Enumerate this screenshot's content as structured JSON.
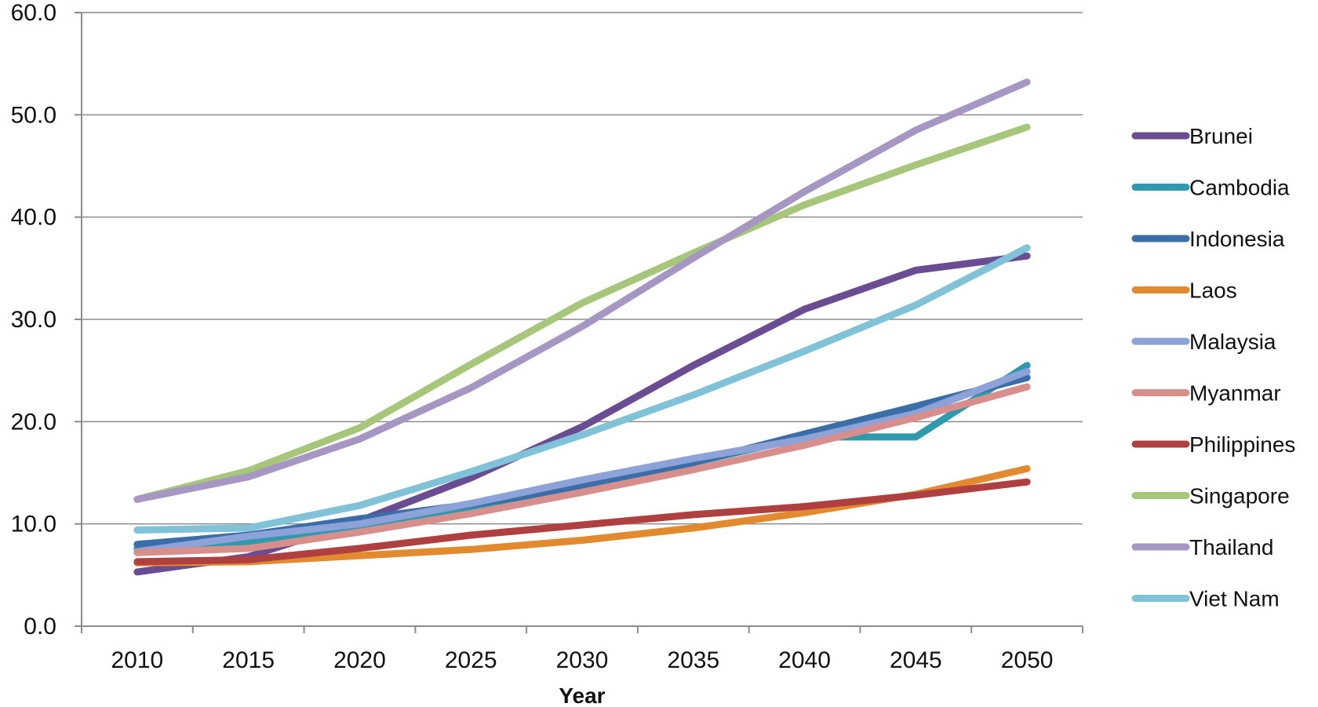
{
  "chart_data": {
    "type": "line",
    "title": "",
    "xlabel": "Year",
    "ylabel": "",
    "x": [
      2010,
      2015,
      2020,
      2025,
      2030,
      2035,
      2040,
      2045,
      2050
    ],
    "x_tick_labels": [
      "2010",
      "2015",
      "2020",
      "2025",
      "2030",
      "2035",
      "2040",
      "2045",
      "2050"
    ],
    "ylim": [
      0,
      60
    ],
    "y_ticks": [
      0,
      10,
      20,
      30,
      40,
      50,
      60
    ],
    "y_tick_labels": [
      "0.0",
      "10.0",
      "20.0",
      "30.0",
      "40.0",
      "50.0",
      "60.0"
    ],
    "grid": "horizontal",
    "legend_position": "right",
    "series": [
      {
        "name": "Brunei",
        "color": "#6a4c93",
        "values": [
          5.3,
          6.8,
          10.3,
          14.5,
          19.5,
          25.5,
          31.0,
          34.8,
          36.2
        ]
      },
      {
        "name": "Cambodia",
        "color": "#2e9aad",
        "values": [
          7.6,
          8.2,
          9.6,
          11.3,
          13.4,
          16.0,
          18.5,
          18.5,
          25.5
        ]
      },
      {
        "name": "Indonesia",
        "color": "#3a6ea8",
        "values": [
          8.0,
          8.9,
          10.5,
          11.9,
          13.6,
          16.0,
          18.8,
          21.5,
          24.3
        ]
      },
      {
        "name": "Laos",
        "color": "#e38a2e",
        "values": [
          6.2,
          6.3,
          6.9,
          7.5,
          8.4,
          9.6,
          11.1,
          12.9,
          15.4
        ]
      },
      {
        "name": "Malaysia",
        "color": "#8da2d8",
        "values": [
          7.3,
          8.8,
          10.0,
          12.0,
          14.3,
          16.4,
          18.3,
          20.8,
          24.9
        ]
      },
      {
        "name": "Myanmar",
        "color": "#d88e8a",
        "values": [
          7.2,
          7.6,
          9.2,
          11.0,
          13.1,
          15.3,
          17.7,
          20.4,
          23.4
        ]
      },
      {
        "name": "Philippines",
        "color": "#b04040",
        "values": [
          6.3,
          6.5,
          7.6,
          8.9,
          9.9,
          10.9,
          11.7,
          12.8,
          14.1
        ]
      },
      {
        "name": "Singapore",
        "color": "#a6c77a",
        "values": [
          12.4,
          15.2,
          19.4,
          25.6,
          31.6,
          36.5,
          41.2,
          45.1,
          48.8
        ]
      },
      {
        "name": "Thailand",
        "color": "#a596c4",
        "values": [
          12.4,
          14.6,
          18.3,
          23.3,
          29.3,
          36.0,
          42.5,
          48.5,
          53.2
        ]
      },
      {
        "name": "Viet Nam",
        "color": "#80c2d8",
        "values": [
          9.4,
          9.6,
          11.8,
          15.1,
          18.7,
          22.6,
          26.9,
          31.4,
          37.0
        ]
      }
    ]
  }
}
